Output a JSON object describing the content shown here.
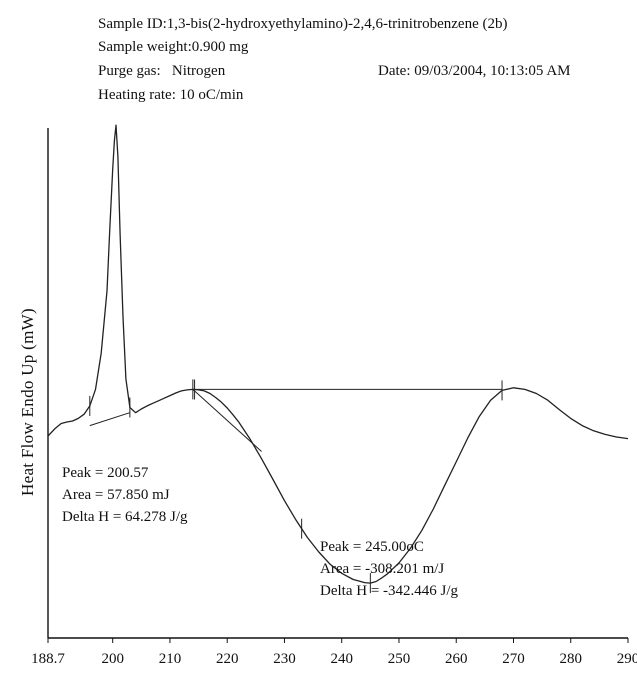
{
  "header": {
    "sample_id": "Sample ID:1,3-bis(2-hydroxyethylamino)-2,4,6-trinitrobenzene (2b)",
    "sample_weight": "Sample weight:0.900 mg",
    "purge_gas": "Purge gas:   Nitrogen",
    "heating_rate": "Heating rate: 10 oC/min",
    "date": "Date: 09/03/2004, 10:13:05 AM"
  },
  "annotations": {
    "peak1": {
      "peak": "Peak = 200.57",
      "area": "Area = 57.850 mJ",
      "delta_h": "Delta H = 64.278 J/g"
    },
    "peak2": {
      "peak": "Peak = 245.00oC",
      "area": "Area = -308.201 m/J",
      "delta_h": "Delta H = -342.446 J/g"
    }
  },
  "chart_data": {
    "type": "line",
    "title": "",
    "xlabel": "",
    "ylabel": "Heat Flow Endo Up (mW)",
    "xlim": [
      188.7,
      290
    ],
    "ylim": [
      0,
      100
    ],
    "x_ticks": [
      "188.7",
      "200",
      "210",
      "220",
      "230",
      "240",
      "250",
      "260",
      "270",
      "280",
      "290"
    ],
    "x_tick_values": [
      188.7,
      200,
      210,
      220,
      230,
      240,
      250,
      260,
      270,
      280,
      290
    ],
    "y_tick_labels_shown": false,
    "grid": false,
    "series": [
      {
        "color": "#222222",
        "x": [
          188.7,
          190,
          191,
          192,
          193,
          194,
          195,
          196,
          197,
          198,
          199,
          199.5,
          200,
          200.3,
          200.57,
          200.9,
          201.3,
          201.8,
          202.3,
          203,
          204,
          205,
          206,
          207,
          208,
          209,
          210,
          211,
          212,
          213,
          214,
          215,
          216,
          217,
          218,
          219,
          220,
          221,
          222,
          224,
          226,
          228,
          230,
          232,
          234,
          236,
          238,
          240,
          242,
          243,
          244,
          245,
          246,
          247,
          248,
          250,
          252,
          254,
          256,
          258,
          260,
          262,
          264,
          266,
          268,
          270,
          272,
          274,
          276,
          278,
          280,
          282,
          284,
          286,
          288,
          290
        ],
        "y": [
          39.0,
          40.5,
          41.4,
          41.7,
          41.9,
          42.4,
          43.2,
          44.8,
          48.0,
          55.0,
          67.0,
          79.0,
          90.5,
          96.0,
          99.0,
          93.0,
          78.0,
          62.0,
          50.0,
          44.5,
          43.5,
          44.2,
          44.8,
          45.3,
          45.8,
          46.3,
          46.8,
          47.3,
          47.7,
          47.9,
          48.0,
          47.9,
          47.7,
          47.2,
          46.4,
          45.5,
          44.4,
          43.1,
          41.7,
          38.4,
          34.6,
          30.6,
          26.5,
          22.8,
          19.4,
          16.6,
          14.2,
          12.5,
          11.3,
          11.0,
          10.7,
          10.6,
          10.9,
          11.6,
          12.4,
          14.5,
          17.3,
          20.8,
          24.9,
          29.5,
          34.0,
          38.6,
          42.7,
          45.9,
          47.8,
          48.3,
          48.0,
          47.2,
          45.9,
          44.1,
          42.4,
          41.0,
          40.0,
          39.3,
          38.8,
          38.5
        ]
      }
    ],
    "baselines": [
      {
        "x": [
          196,
          203
        ],
        "y": [
          41.0,
          43.5
        ]
      },
      {
        "x": [
          214,
          268
        ],
        "y": [
          48.0,
          48.0
        ]
      },
      {
        "x": [
          214,
          226
        ],
        "y": [
          48.0,
          36.0
        ]
      }
    ],
    "tick_markers_x": [
      196,
      203,
      214,
      214.3,
      233,
      245,
      268
    ]
  }
}
